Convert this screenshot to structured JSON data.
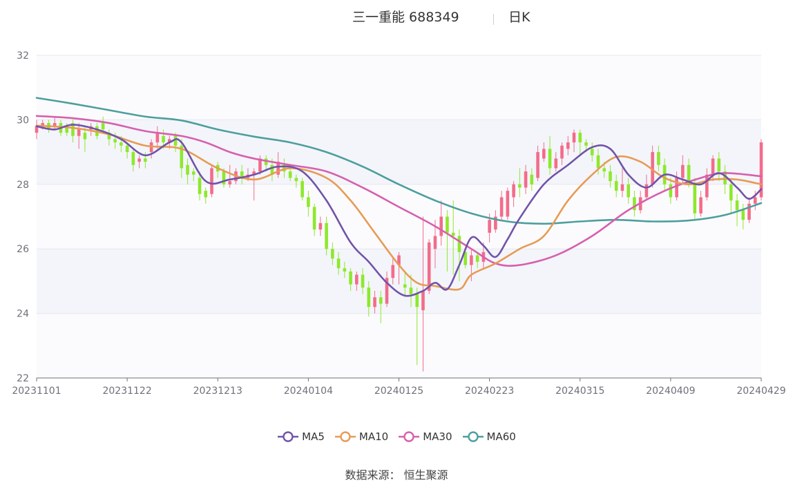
{
  "header": {
    "title": "三一重能 688349",
    "subtitle": "日K"
  },
  "source": "数据来源： 恒生聚源",
  "chart_data": {
    "type": "candlestick",
    "y_ticks": [
      "22",
      "24",
      "26",
      "28",
      "30",
      "32"
    ],
    "ylim": [
      22,
      32
    ],
    "x_ticks": [
      {
        "label": "20231101",
        "index": 0
      },
      {
        "label": "20231122",
        "index": 15
      },
      {
        "label": "20231213",
        "index": 30
      },
      {
        "label": "20240104",
        "index": 45
      },
      {
        "label": "20240125",
        "index": 60
      },
      {
        "label": "20240223",
        "index": 75
      },
      {
        "label": "20240315",
        "index": 90
      },
      {
        "label": "20240409",
        "index": 105
      },
      {
        "label": "20240429",
        "index": 120
      }
    ],
    "colors": {
      "up": "#f36c8a",
      "down": "#8ee82c",
      "ma5": "#7153a9",
      "ma10": "#e79b54",
      "ma30": "#d75fae",
      "ma60": "#4d9e9e"
    },
    "legend_entries": [
      {
        "name": "MA5",
        "color": "#7153a9"
      },
      {
        "name": "MA10",
        "color": "#e79b54"
      },
      {
        "name": "MA30",
        "color": "#d75fae"
      },
      {
        "name": "MA60",
        "color": "#4d9e9e"
      }
    ],
    "candles": [
      [
        29.6,
        29.8,
        29.4,
        30.0
      ],
      [
        29.8,
        29.9,
        29.7,
        30.0
      ],
      [
        29.9,
        29.7,
        29.6,
        30.0
      ],
      [
        29.8,
        29.9,
        29.7,
        30.1
      ],
      [
        29.9,
        29.6,
        29.5,
        30.0
      ],
      [
        29.8,
        29.6,
        29.5,
        29.9
      ],
      [
        29.9,
        29.5,
        29.3,
        30.0
      ],
      [
        29.5,
        29.7,
        29.1,
        29.9
      ],
      [
        29.6,
        29.4,
        29.0,
        29.8
      ],
      [
        29.7,
        29.8,
        29.5,
        29.9
      ],
      [
        29.8,
        29.5,
        29.4,
        29.9
      ],
      [
        29.9,
        29.7,
        29.6,
        30.1
      ],
      [
        29.6,
        29.4,
        29.2,
        29.7
      ],
      [
        29.4,
        29.3,
        29.1,
        29.6
      ],
      [
        29.3,
        29.2,
        29.0,
        29.5
      ],
      [
        29.2,
        29.0,
        28.8,
        29.3
      ],
      [
        29.0,
        28.6,
        28.4,
        29.1
      ],
      [
        28.7,
        28.8,
        28.5,
        28.9
      ],
      [
        28.8,
        28.7,
        28.5,
        29.0
      ],
      [
        29.0,
        29.3,
        28.8,
        29.4
      ],
      [
        29.3,
        29.6,
        29.1,
        29.8
      ],
      [
        29.5,
        29.3,
        29.1,
        29.7
      ],
      [
        29.3,
        29.4,
        29.1,
        29.5
      ],
      [
        29.5,
        29.2,
        29.0,
        29.6
      ],
      [
        29.2,
        28.5,
        28.2,
        29.4
      ],
      [
        28.6,
        28.3,
        28.0,
        28.8
      ],
      [
        28.4,
        28.3,
        28.1,
        28.5
      ],
      [
        28.2,
        27.7,
        27.5,
        28.4
      ],
      [
        27.8,
        27.6,
        27.4,
        27.9
      ],
      [
        27.7,
        28.5,
        27.6,
        28.6
      ],
      [
        28.6,
        28.4,
        28.2,
        28.7
      ],
      [
        28.4,
        28.0,
        27.9,
        28.5
      ],
      [
        28.0,
        28.1,
        27.9,
        28.6
      ],
      [
        28.1,
        28.4,
        28.0,
        28.5
      ],
      [
        28.4,
        28.2,
        28.0,
        28.6
      ],
      [
        28.2,
        28.3,
        28.1,
        28.5
      ],
      [
        28.3,
        28.4,
        27.5,
        28.5
      ],
      [
        28.4,
        28.8,
        28.3,
        28.9
      ],
      [
        28.8,
        28.6,
        28.4,
        28.9
      ],
      [
        28.6,
        28.3,
        28.1,
        28.8
      ],
      [
        28.3,
        28.7,
        28.2,
        29.0
      ],
      [
        28.6,
        28.4,
        28.2,
        28.8
      ],
      [
        28.4,
        28.2,
        28.1,
        28.6
      ],
      [
        28.2,
        28.1,
        27.9,
        28.3
      ],
      [
        28.1,
        27.6,
        27.5,
        28.2
      ],
      [
        27.6,
        27.3,
        27.0,
        27.8
      ],
      [
        27.3,
        26.6,
        26.4,
        27.4
      ],
      [
        26.6,
        26.8,
        26.4,
        27.0
      ],
      [
        26.8,
        26.0,
        25.8,
        27.0
      ],
      [
        26.0,
        25.7,
        25.5,
        26.2
      ],
      [
        25.7,
        25.4,
        25.2,
        25.9
      ],
      [
        25.4,
        25.3,
        25.1,
        25.6
      ],
      [
        25.3,
        24.9,
        24.7,
        25.4
      ],
      [
        24.9,
        25.2,
        24.7,
        25.3
      ],
      [
        25.2,
        24.8,
        24.6,
        25.4
      ],
      [
        24.8,
        24.2,
        23.9,
        25.0
      ],
      [
        24.2,
        24.5,
        24.0,
        24.7
      ],
      [
        24.5,
        24.3,
        23.7,
        24.7
      ],
      [
        24.3,
        25.1,
        24.2,
        25.3
      ],
      [
        25.1,
        25.5,
        24.9,
        25.7
      ],
      [
        25.5,
        25.8,
        24.9,
        25.9
      ],
      [
        24.9,
        24.8,
        24.5,
        25.3
      ],
      [
        24.8,
        24.6,
        24.2,
        25.2
      ],
      [
        24.6,
        24.2,
        22.4,
        24.8
      ],
      [
        24.1,
        24.7,
        22.2,
        27.0
      ],
      [
        24.7,
        26.2,
        24.6,
        26.3
      ],
      [
        26.0,
        26.4,
        25.4,
        26.9
      ],
      [
        26.4,
        27.0,
        26.1,
        27.5
      ],
      [
        27.0,
        26.5,
        25.3,
        27.2
      ],
      [
        26.5,
        26.4,
        25.2,
        27.5
      ],
      [
        26.4,
        25.9,
        25.0,
        26.6
      ],
      [
        25.9,
        25.5,
        25.4,
        26.0
      ],
      [
        25.5,
        25.8,
        25.0,
        26.0
      ],
      [
        25.8,
        25.6,
        25.4,
        25.9
      ],
      [
        25.6,
        25.9,
        25.4,
        26.2
      ],
      [
        26.5,
        26.9,
        26.2,
        27.1
      ],
      [
        26.6,
        27.0,
        26.5,
        27.2
      ],
      [
        27.0,
        27.6,
        26.9,
        27.8
      ],
      [
        27.0,
        27.8,
        26.9,
        27.9
      ],
      [
        27.6,
        28.0,
        27.3,
        28.1
      ],
      [
        28.0,
        27.9,
        27.6,
        28.5
      ],
      [
        27.9,
        28.4,
        27.7,
        28.6
      ],
      [
        28.3,
        28.0,
        27.8,
        28.5
      ],
      [
        28.2,
        29.0,
        28.1,
        29.2
      ],
      [
        28.8,
        29.1,
        28.7,
        29.3
      ],
      [
        29.1,
        28.5,
        28.3,
        29.5
      ],
      [
        28.5,
        28.8,
        28.4,
        29.0
      ],
      [
        28.8,
        29.2,
        28.6,
        29.3
      ],
      [
        29.1,
        29.3,
        28.9,
        29.5
      ],
      [
        29.3,
        29.6,
        29.0,
        29.7
      ],
      [
        29.6,
        29.3,
        28.9,
        29.7
      ],
      [
        29.3,
        29.2,
        29.0,
        29.4
      ],
      [
        29.1,
        28.9,
        28.7,
        29.3
      ],
      [
        28.9,
        28.5,
        28.3,
        29.1
      ],
      [
        28.5,
        28.4,
        28.2,
        28.7
      ],
      [
        28.4,
        28.1,
        27.9,
        28.6
      ],
      [
        28.1,
        27.8,
        27.6,
        28.3
      ],
      [
        27.8,
        28.0,
        27.6,
        28.5
      ],
      [
        28.0,
        27.6,
        27.4,
        28.2
      ],
      [
        27.6,
        27.2,
        27.0,
        27.8
      ],
      [
        27.2,
        27.6,
        27.1,
        27.8
      ],
      [
        27.6,
        28.0,
        27.5,
        28.3
      ],
      [
        28.0,
        29.0,
        27.9,
        29.2
      ],
      [
        29.0,
        28.6,
        28.4,
        29.2
      ],
      [
        28.6,
        28.0,
        27.8,
        28.8
      ],
      [
        28.0,
        27.6,
        27.4,
        28.2
      ],
      [
        27.6,
        28.2,
        27.5,
        28.4
      ],
      [
        28.2,
        28.6,
        28.0,
        28.9
      ],
      [
        28.6,
        28.0,
        27.9,
        28.8
      ],
      [
        28.0,
        27.1,
        26.9,
        28.2
      ],
      [
        27.1,
        27.6,
        27.0,
        27.8
      ],
      [
        27.6,
        28.3,
        27.5,
        28.5
      ],
      [
        28.3,
        28.8,
        28.1,
        28.9
      ],
      [
        28.8,
        28.4,
        28.1,
        29.0
      ],
      [
        28.4,
        28.0,
        27.7,
        28.6
      ],
      [
        28.0,
        27.5,
        27.1,
        28.2
      ],
      [
        27.5,
        27.2,
        26.7,
        27.7
      ],
      [
        27.2,
        26.9,
        26.6,
        27.4
      ],
      [
        26.9,
        27.4,
        26.8,
        27.6
      ],
      [
        27.4,
        27.6,
        27.2,
        27.8
      ],
      [
        27.6,
        29.3,
        27.5,
        29.4
      ]
    ],
    "ma60_pts": [
      [
        0,
        30.68
      ],
      [
        6,
        30.5
      ],
      [
        12,
        30.3
      ],
      [
        18,
        30.1
      ],
      [
        24,
        29.98
      ],
      [
        30,
        29.7
      ],
      [
        36,
        29.48
      ],
      [
        42,
        29.3
      ],
      [
        48,
        29.0
      ],
      [
        54,
        28.55
      ],
      [
        60,
        28.0
      ],
      [
        66,
        27.5
      ],
      [
        72,
        27.1
      ],
      [
        78,
        26.85
      ],
      [
        84,
        26.78
      ],
      [
        90,
        26.85
      ],
      [
        96,
        26.9
      ],
      [
        102,
        26.85
      ],
      [
        108,
        26.88
      ],
      [
        114,
        27.05
      ],
      [
        120,
        27.42
      ]
    ],
    "ma30_pts": [
      [
        0,
        30.12
      ],
      [
        6,
        30.05
      ],
      [
        12,
        29.9
      ],
      [
        18,
        29.65
      ],
      [
        24,
        29.5
      ],
      [
        28,
        29.3
      ],
      [
        32,
        29.0
      ],
      [
        36,
        28.8
      ],
      [
        42,
        28.6
      ],
      [
        48,
        28.4
      ],
      [
        54,
        27.9
      ],
      [
        60,
        27.3
      ],
      [
        66,
        26.7
      ],
      [
        72,
        26.0
      ],
      [
        76,
        25.55
      ],
      [
        80,
        25.5
      ],
      [
        86,
        25.8
      ],
      [
        92,
        26.4
      ],
      [
        98,
        27.2
      ],
      [
        104,
        27.8
      ],
      [
        110,
        28.2
      ],
      [
        114,
        28.35
      ],
      [
        120,
        28.25
      ]
    ],
    "ma10_pts": [
      [
        0,
        29.82
      ],
      [
        6,
        29.75
      ],
      [
        12,
        29.55
      ],
      [
        18,
        29.2
      ],
      [
        24,
        29.1
      ],
      [
        30,
        28.5
      ],
      [
        36,
        28.15
      ],
      [
        42,
        28.5
      ],
      [
        48,
        28.2
      ],
      [
        52,
        27.5
      ],
      [
        56,
        26.5
      ],
      [
        60,
        25.5
      ],
      [
        63,
        24.95
      ],
      [
        66,
        24.85
      ],
      [
        70,
        24.75
      ],
      [
        72,
        25.2
      ],
      [
        76,
        25.55
      ],
      [
        80,
        26.0
      ],
      [
        84,
        26.4
      ],
      [
        88,
        27.5
      ],
      [
        92,
        28.3
      ],
      [
        96,
        28.85
      ],
      [
        100,
        28.7
      ],
      [
        104,
        28.2
      ],
      [
        108,
        28.0
      ],
      [
        112,
        28.15
      ],
      [
        116,
        28.15
      ],
      [
        120,
        28.0
      ]
    ],
    "ma5_pts": [
      [
        0,
        29.8
      ],
      [
        3,
        29.7
      ],
      [
        6,
        29.85
      ],
      [
        10,
        29.7
      ],
      [
        14,
        29.4
      ],
      [
        18,
        28.9
      ],
      [
        22,
        29.3
      ],
      [
        24,
        29.3
      ],
      [
        28,
        28.1
      ],
      [
        32,
        28.15
      ],
      [
        36,
        28.3
      ],
      [
        40,
        28.55
      ],
      [
        44,
        28.4
      ],
      [
        48,
        27.5
      ],
      [
        52,
        26.2
      ],
      [
        55,
        25.6
      ],
      [
        58,
        24.95
      ],
      [
        61,
        24.55
      ],
      [
        64,
        24.7
      ],
      [
        66,
        24.95
      ],
      [
        68,
        24.75
      ],
      [
        70,
        25.5
      ],
      [
        72,
        26.35
      ],
      [
        74,
        26.1
      ],
      [
        76,
        25.75
      ],
      [
        78,
        26.3
      ],
      [
        80,
        26.95
      ],
      [
        84,
        28.0
      ],
      [
        88,
        28.6
      ],
      [
        92,
        29.15
      ],
      [
        95,
        29.1
      ],
      [
        98,
        28.3
      ],
      [
        101,
        27.9
      ],
      [
        104,
        28.3
      ],
      [
        107,
        28.15
      ],
      [
        110,
        28.0
      ],
      [
        113,
        28.35
      ],
      [
        116,
        27.9
      ],
      [
        118,
        27.55
      ],
      [
        120,
        27.85
      ]
    ]
  }
}
